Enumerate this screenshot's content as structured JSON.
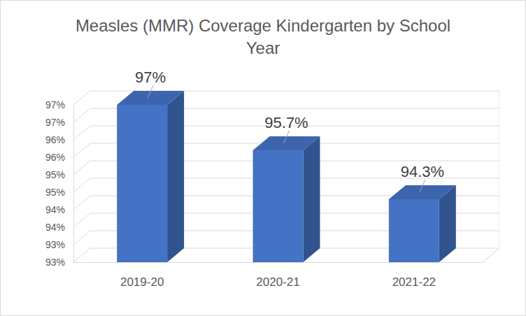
{
  "chart_data": {
    "type": "bar",
    "title": "Measles (MMR) Coverage Kindergarten by School Year",
    "categories": [
      "2019-20",
      "2020-21",
      "2021-22"
    ],
    "values": [
      97,
      95.7,
      94.3
    ],
    "value_labels": [
      "97%",
      "95.7%",
      "94.3%"
    ],
    "color": "#4472c4",
    "ylim": [
      92.5,
      97
    ],
    "yticks": [
      {
        "value": 92.5,
        "label": "93%"
      },
      {
        "value": 93,
        "label": "93%"
      },
      {
        "value": 93.5,
        "label": "94%"
      },
      {
        "value": 94,
        "label": "94%"
      },
      {
        "value": 94.5,
        "label": "95%"
      },
      {
        "value": 95,
        "label": "95%"
      },
      {
        "value": 95.5,
        "label": "96%"
      },
      {
        "value": 96,
        "label": "96%"
      },
      {
        "value": 96.5,
        "label": "97%"
      },
      {
        "value": 97,
        "label": "97%"
      }
    ],
    "grid": true,
    "data_labels": true
  }
}
